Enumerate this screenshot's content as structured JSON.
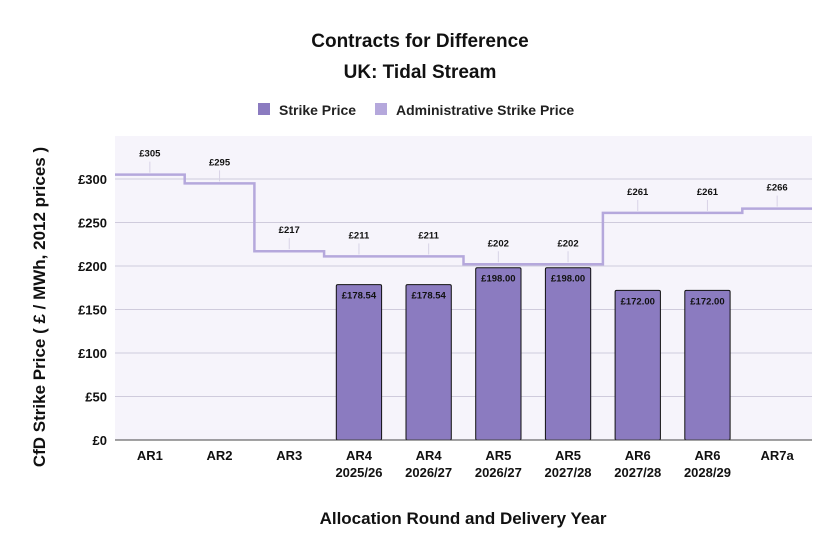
{
  "chart_data": {
    "type": "bar",
    "title": "Contracts for Difference",
    "subtitle": "UK: Tidal Stream",
    "xlabel": "Allocation Round and Delivery Year",
    "ylabel": "CfD Strike Price ( £ / MWh, 2012 prices )",
    "ylim": [
      0,
      300
    ],
    "yticks": [
      0,
      50,
      100,
      150,
      200,
      250,
      300
    ],
    "ytick_labels": [
      "£0",
      "£50",
      "£100",
      "£150",
      "£200",
      "£250",
      "£300"
    ],
    "categories": [
      [
        "AR1"
      ],
      [
        "AR2"
      ],
      [
        "AR3"
      ],
      [
        "AR4",
        "2025/26"
      ],
      [
        "AR4",
        "2026/27"
      ],
      [
        "AR5",
        "2026/27"
      ],
      [
        "AR5",
        "2027/28"
      ],
      [
        "AR6",
        "2027/28"
      ],
      [
        "AR6",
        "2028/29"
      ],
      [
        "AR7a"
      ]
    ],
    "series": [
      {
        "name": "Strike Price",
        "kind": "bar",
        "color": "#8b7bc0",
        "values": [
          null,
          null,
          null,
          178.54,
          178.54,
          198.0,
          198.0,
          172.0,
          172.0,
          null
        ],
        "labels": [
          "",
          "",
          "",
          "£178.54",
          "£178.54",
          "£198.00",
          "£198.00",
          "£172.00",
          "£172.00",
          ""
        ]
      },
      {
        "name": "Administrative Strike Price",
        "kind": "step-line",
        "color": "#b5a8dc",
        "values": [
          305,
          295,
          217,
          211,
          211,
          202,
          202,
          261,
          261,
          266
        ],
        "labels": [
          "£305",
          "£295",
          "£217",
          "£211",
          "£211",
          "£202",
          "£202",
          "£261",
          "£261",
          "£266"
        ]
      }
    ],
    "legend": {
      "position": "top",
      "entries": [
        "Strike Price",
        "Administrative Strike Price"
      ]
    },
    "grid": true,
    "plot_background": "#f6f4fb",
    "grid_color": "#cfcbdc",
    "bar_border_color": "#111111"
  }
}
